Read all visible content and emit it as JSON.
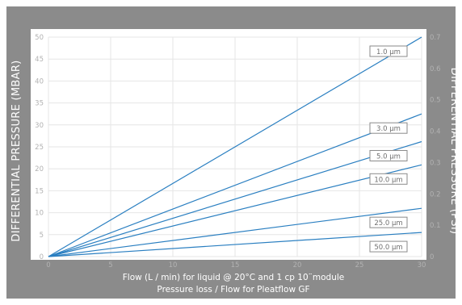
{
  "chart_data": {
    "type": "line",
    "title": "Pressure loss / Flow for Pleatflow GF",
    "xlabel": "Flow (L / min) for liquid @ 20°C and 1 cp 10¨module",
    "ylabel_left": "DIFFERENTIAL PRESSURE (MBAR)",
    "ylabel_right": "DIFFERENTIAL PRESSURE (PSI)",
    "xlim": [
      0,
      30
    ],
    "ylim_left": [
      0,
      50
    ],
    "ylim_right": [
      0,
      0.7
    ],
    "x_ticks": [
      "0",
      "5",
      "10",
      "15",
      "20",
      "25",
      "30"
    ],
    "y_ticks_left": [
      "0",
      "5",
      "10",
      "15",
      "20",
      "25",
      "30",
      "35",
      "40",
      "45",
      "50"
    ],
    "y_ticks_right": [
      "0",
      "0.1",
      "0.2",
      "0.3",
      "0.4",
      "0.5",
      "0.6",
      "0.7"
    ],
    "grid": true,
    "series_color": "#2a7fc1",
    "series": [
      {
        "name": "1.0 µm",
        "x": [
          0,
          30
        ],
        "y": [
          0,
          50
        ]
      },
      {
        "name": "3.0 µm",
        "x": [
          0,
          30
        ],
        "y": [
          0,
          32.5
        ]
      },
      {
        "name": "5.0 µm",
        "x": [
          0,
          30
        ],
        "y": [
          0,
          26.2
        ]
      },
      {
        "name": "10.0 µm",
        "x": [
          0,
          30
        ],
        "y": [
          0,
          20.9
        ]
      },
      {
        "name": "25.0 µm",
        "x": [
          0,
          30
        ],
        "y": [
          0,
          11
        ]
      },
      {
        "name": "50.0 µm",
        "x": [
          0,
          30
        ],
        "y": [
          0,
          5.5
        ]
      }
    ]
  }
}
